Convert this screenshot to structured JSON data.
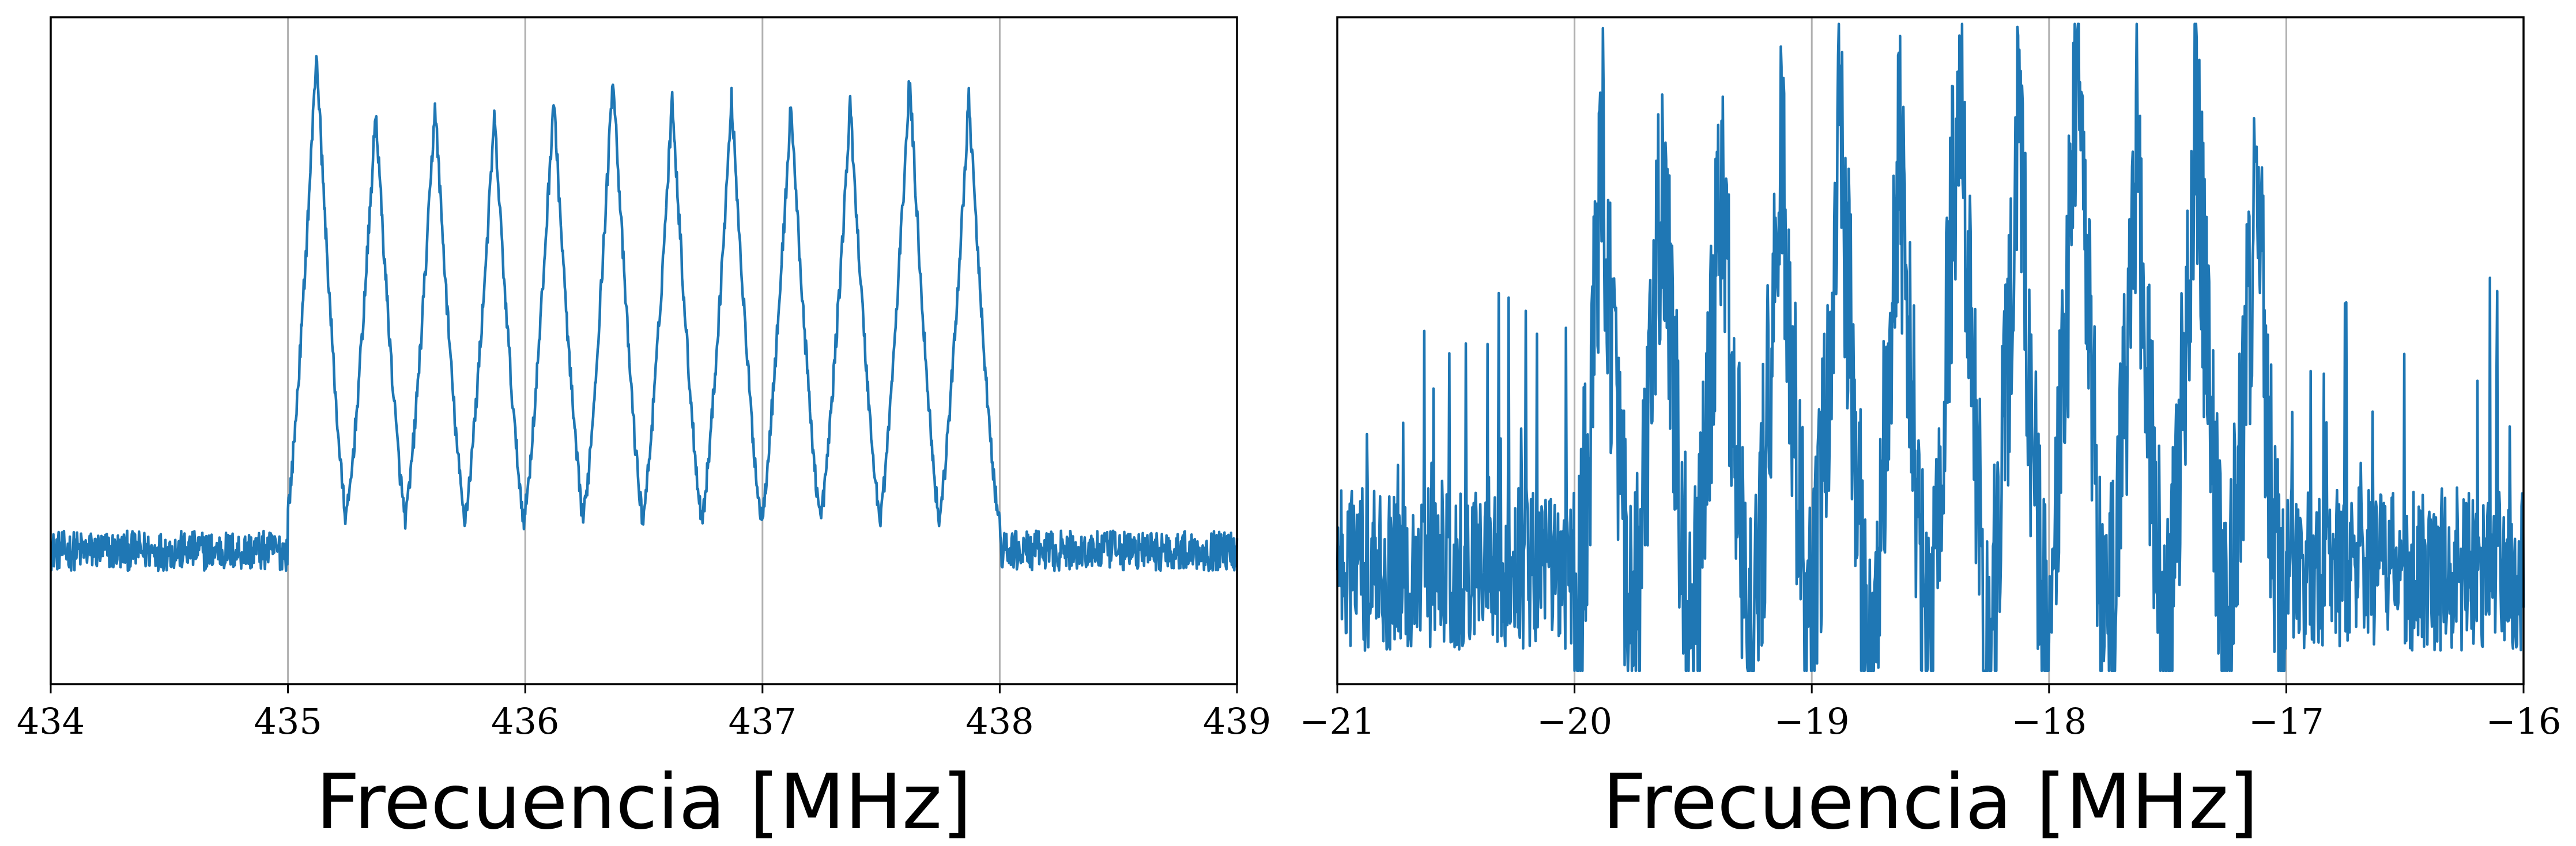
{
  "chart_data": [
    {
      "type": "line",
      "title": "",
      "xlabel": "Frecuencia [MHz]",
      "ylabel": "",
      "xlim": [
        434,
        439
      ],
      "ylim": [
        0,
        1
      ],
      "x_ticks": [
        434,
        435,
        436,
        437,
        438,
        439
      ],
      "x_tick_labels": [
        "434",
        "435",
        "436",
        "437",
        "438",
        "439"
      ],
      "grid": "x",
      "legend": "none",
      "color": "#1f77b4",
      "noise_floor": 0.2,
      "noise_amplitude": 0.06,
      "band": [
        435.0,
        438.0
      ],
      "series": [
        {
          "peaks": [
            {
              "x": 435.12,
              "y": 0.95
            },
            {
              "x": 435.37,
              "y": 0.86
            },
            {
              "x": 435.62,
              "y": 0.87
            },
            {
              "x": 435.87,
              "y": 0.85
            },
            {
              "x": 436.12,
              "y": 0.88
            },
            {
              "x": 436.37,
              "y": 0.92
            },
            {
              "x": 436.62,
              "y": 0.88
            },
            {
              "x": 436.87,
              "y": 0.88
            },
            {
              "x": 437.12,
              "y": 0.87
            },
            {
              "x": 437.37,
              "y": 0.87
            },
            {
              "x": 437.62,
              "y": 0.91
            },
            {
              "x": 437.87,
              "y": 0.88
            }
          ],
          "valley_level": 0.25
        }
      ]
    },
    {
      "type": "line",
      "title": "",
      "xlabel": "Frecuencia [MHz]",
      "ylabel": "",
      "xlim": [
        -21,
        -16
      ],
      "ylim": [
        0,
        1
      ],
      "x_ticks": [
        -21,
        -20,
        -19,
        -18,
        -17,
        -16
      ],
      "x_tick_labels": [
        "−21",
        "−20",
        "−19",
        "−18",
        "−17",
        "−16"
      ],
      "grid": "x",
      "legend": "none",
      "color": "#1f77b4",
      "noise_floor": 0.05,
      "noise_amplitude": 0.35,
      "band": [
        -20.0,
        -17.0
      ],
      "series": [
        {
          "peaks": [
            {
              "x": -19.88,
              "y": 0.8
            },
            {
              "x": -19.63,
              "y": 0.78
            },
            {
              "x": -19.38,
              "y": 0.77
            },
            {
              "x": -19.13,
              "y": 0.79
            },
            {
              "x": -18.88,
              "y": 0.85
            },
            {
              "x": -18.63,
              "y": 0.8
            },
            {
              "x": -18.38,
              "y": 0.94
            },
            {
              "x": -18.13,
              "y": 0.82
            },
            {
              "x": -17.88,
              "y": 0.96
            },
            {
              "x": -17.63,
              "y": 0.8
            },
            {
              "x": -17.38,
              "y": 0.85
            },
            {
              "x": -17.13,
              "y": 0.76
            }
          ],
          "valley_level": 0.05
        }
      ]
    }
  ]
}
